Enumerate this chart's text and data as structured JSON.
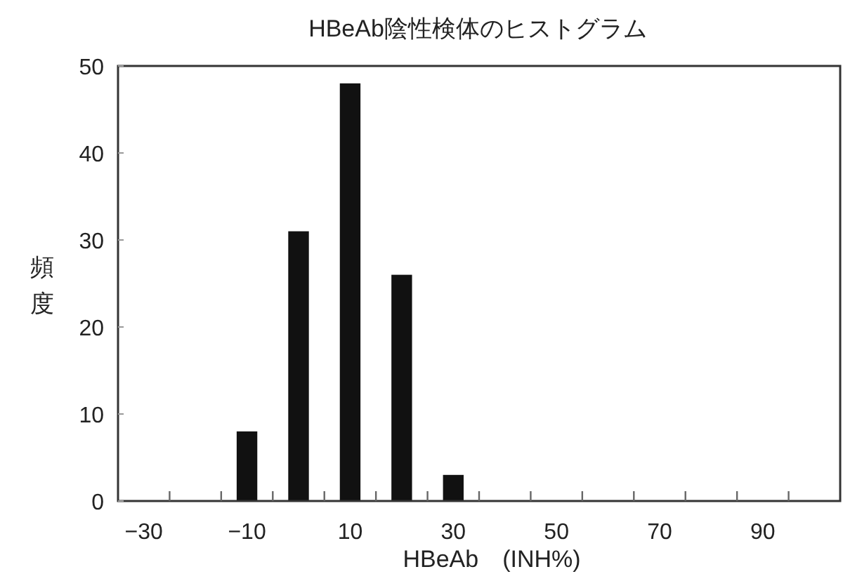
{
  "chart_data": {
    "type": "bar",
    "title": "HBeAb陰性検体のヒストグラム",
    "xlabel": "HBeAb　(INH%)",
    "ylabel": "頻度",
    "x": [
      -10,
      0,
      10,
      20,
      30
    ],
    "values": [
      8,
      31,
      48,
      26,
      3
    ],
    "color": "#111111",
    "xlim": [
      -35,
      105
    ],
    "ylim": [
      0,
      50
    ],
    "xticks": [
      {
        "value": -30,
        "label": "−30"
      },
      {
        "value": -25,
        "label": null
      },
      {
        "value": -15,
        "label": null
      },
      {
        "value": -10,
        "label": "−10"
      },
      {
        "value": -5,
        "label": null
      },
      {
        "value": 5,
        "label": null
      },
      10,
      {
        "value": 15,
        "label": null
      },
      {
        "value": 25,
        "label": null
      },
      30,
      {
        "value": 35,
        "label": null
      },
      {
        "value": 45,
        "label": null
      },
      50,
      {
        "value": 55,
        "label": null
      },
      {
        "value": 65,
        "label": null
      },
      70,
      {
        "value": 75,
        "label": null
      },
      {
        "value": 85,
        "label": null
      },
      90,
      {
        "value": 95,
        "label": null
      }
    ],
    "yticks": [
      0,
      10,
      20,
      30,
      40,
      50
    ]
  }
}
